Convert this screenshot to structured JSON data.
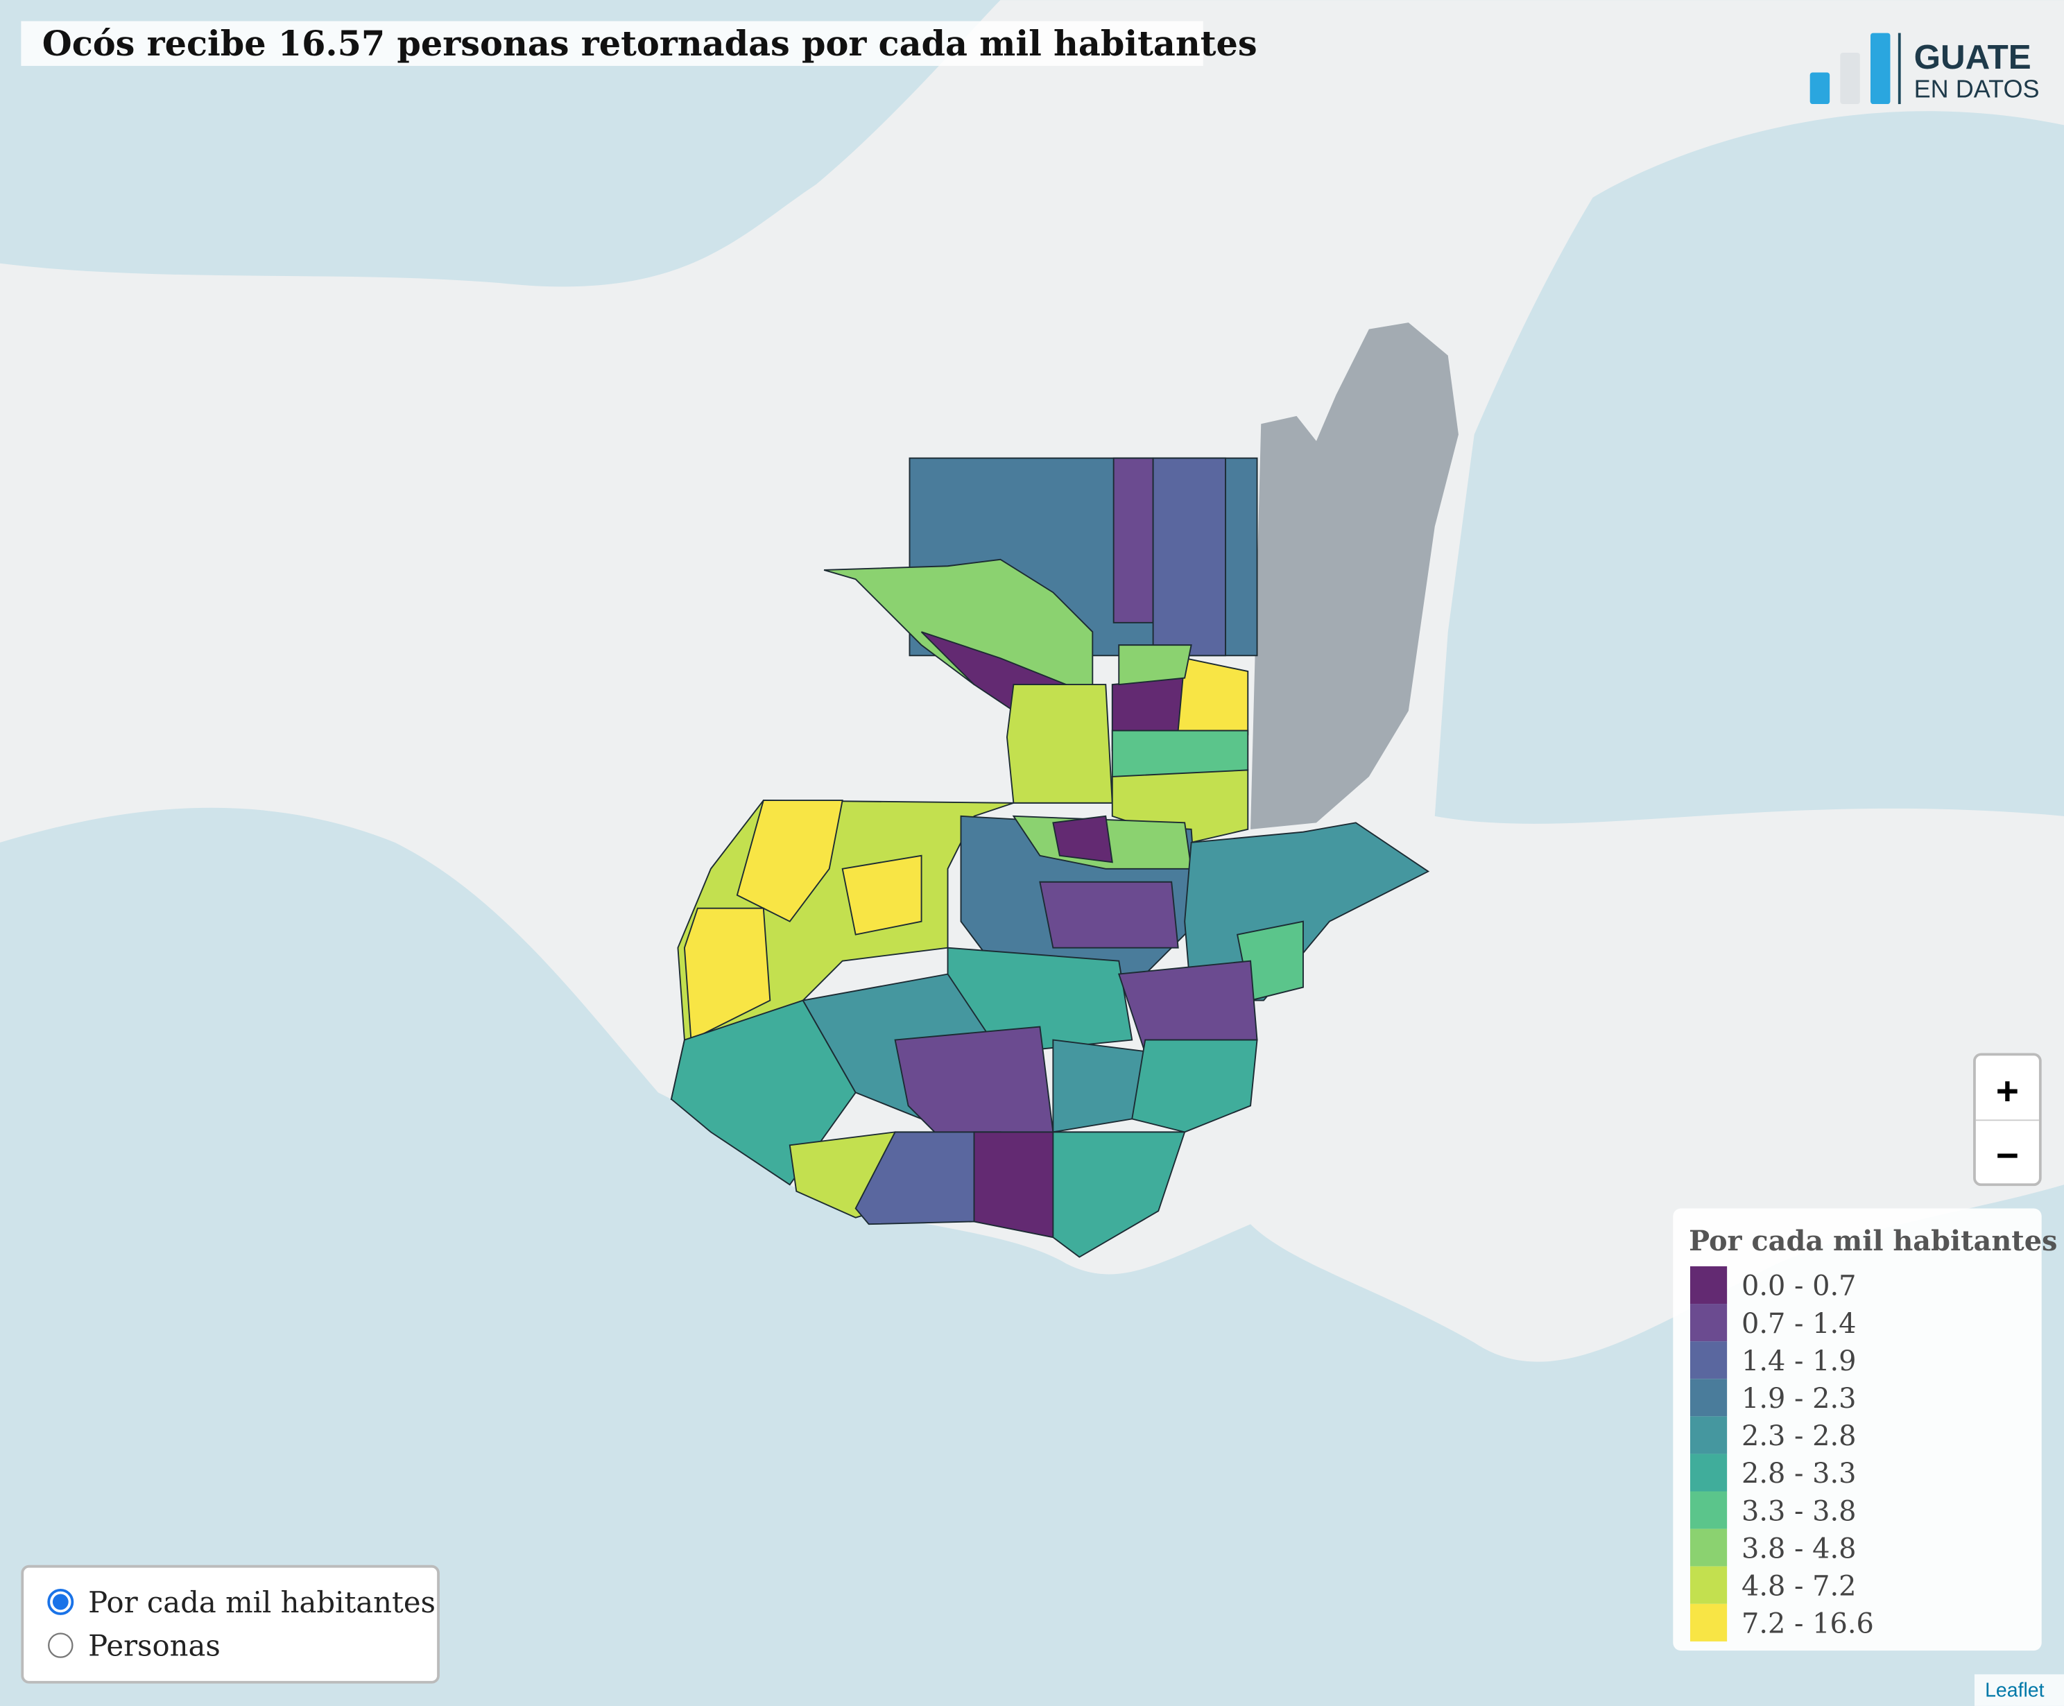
{
  "header": {
    "title": "Ocós recibe 16.57 personas retornadas por cada mil habitantes"
  },
  "logo": {
    "line1": "GUATE",
    "line2": "EN DATOS"
  },
  "zoom": {
    "in": "+",
    "out": "−"
  },
  "legend": {
    "title": "Por cada mil habitantes",
    "items": [
      {
        "label": "0.0 - 0.7",
        "color": "#632a72"
      },
      {
        "label": "0.7 - 1.4",
        "color": "#6b4b90"
      },
      {
        "label": "1.4 - 1.9",
        "color": "#5a679f"
      },
      {
        "label": "1.9 - 2.3",
        "color": "#4a7c9b"
      },
      {
        "label": "2.3 - 2.8",
        "color": "#45979f"
      },
      {
        "label": "2.8 - 3.3",
        "color": "#40ad9b"
      },
      {
        "label": "3.3 - 3.8",
        "color": "#5bc58b"
      },
      {
        "label": "3.8 - 4.8",
        "color": "#8bd270"
      },
      {
        "label": "4.8 - 7.2",
        "color": "#c3e04f"
      },
      {
        "label": "7.2 - 16.6",
        "color": "#f8e545"
      }
    ]
  },
  "layers": {
    "options": [
      "Por cada mil habitantes",
      "Personas"
    ],
    "selected": 0
  },
  "attribution": "Leaflet"
}
